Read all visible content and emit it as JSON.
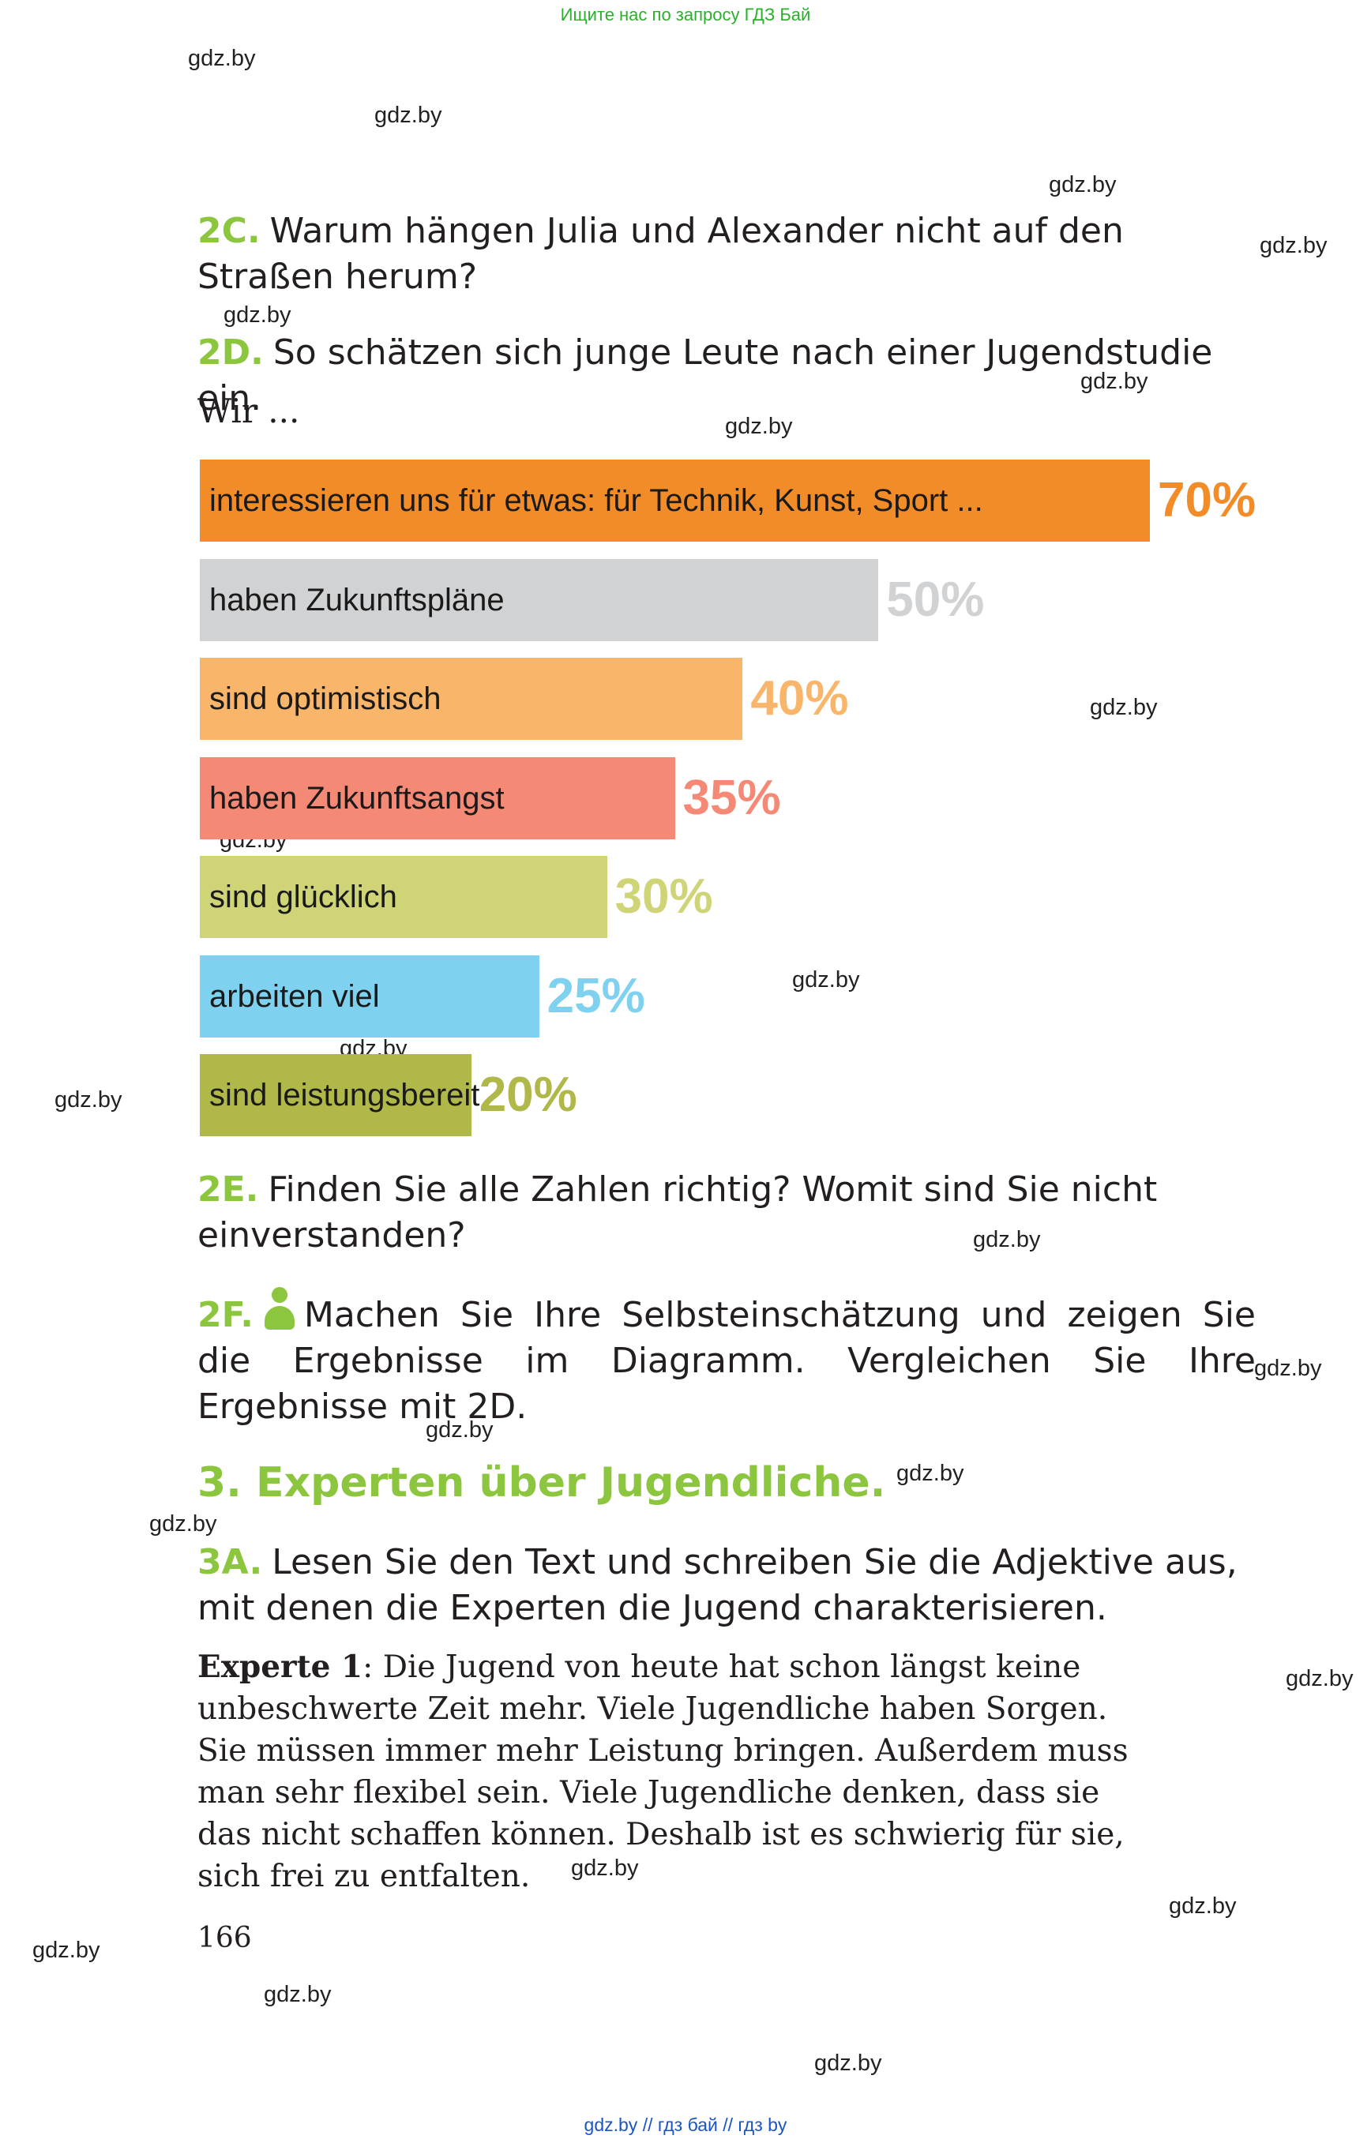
{
  "banner": "Ищите нас по запросу ГДЗ Бай",
  "watermark": "gdz.by",
  "tasks": {
    "t2c": {
      "num": "2C.",
      "text": "Warum hängen Julia und Alexander nicht auf den Straßen herum?"
    },
    "t2d": {
      "num": "2D.",
      "text": "So schätzen sich junge Leute nach einer Jugendstudie ein."
    },
    "t2e": {
      "num": "2E.",
      "text": "Finden Sie alle Zahlen richtig? Womit sind Sie nicht einverstanden?"
    },
    "t2f": {
      "num": "2F.",
      "icon": "person-icon",
      "text": "Machen Sie Ihre Selbsteinschätzung und zeigen Sie die Ergebnisse im Diagramm. Vergleichen Sie Ihre Ergebnisse mit 2D."
    },
    "t3a": {
      "num": "3A.",
      "text": "Lesen Sie den Text und schreiben Sie die Adjektive aus, mit denen die Experten die Jugend charakterisieren."
    }
  },
  "section3": {
    "num": "3.",
    "title": "Experten über Jugendliche."
  },
  "chart_intro": "Wir ...",
  "chart_data": {
    "type": "bar",
    "orientation": "horizontal",
    "categories": [
      "interessieren uns für etwas: für Technik, Kunst, Sport ...",
      "haben Zukunftspläne",
      "sind optimistisch",
      "haben Zukunftsangst",
      "sind glücklich",
      "arbeiten viel",
      "sind leistungsbereit"
    ],
    "values": [
      70,
      50,
      40,
      35,
      30,
      25,
      20
    ],
    "value_labels": [
      "70%",
      "50%",
      "40%",
      "35%",
      "30%",
      "25%",
      "20%"
    ],
    "colors": [
      "#f28c28",
      "#d1d2d4",
      "#f9b66b",
      "#f48a76",
      "#cfd476",
      "#7fd1f0",
      "#b0b84a"
    ],
    "label_colors": [
      "#f28c28",
      "#d1d2d4",
      "#f9b66b",
      "#f48a76",
      "#cfd476",
      "#7fd1f0",
      "#b0b84a"
    ],
    "ylim": [
      0,
      70
    ]
  },
  "expert_text": {
    "label": "Experte 1",
    "text": ": Die Jugend von heute hat schon längst keine unbeschwerte Zeit mehr. Viele Jugendliche haben Sorgen. Sie müssen immer mehr Leistung bringen. Außerdem muss man sehr flexibel sein. Viele Jugendliche denken, dass sie das nicht schaffen können. Deshalb ist es schwierig für sie, sich frei zu entfalten."
  },
  "page_number": "166",
  "bottom_links": "gdz.by  //  гдз бай  //  гдз by"
}
